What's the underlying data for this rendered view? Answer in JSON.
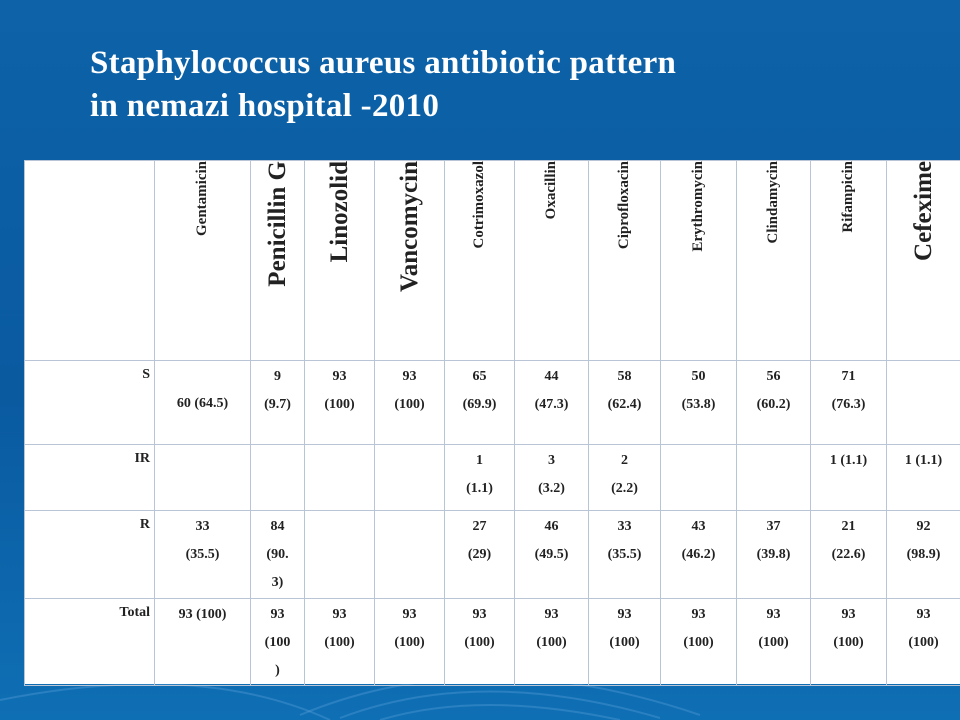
{
  "slide": {
    "title_line1": "Staphylococcus aureus antibiotic pattern",
    "title_line2": "in nemazi  hospital -2010"
  },
  "table": {
    "columns": [
      {
        "label": "Gentamicin",
        "size": "small"
      },
      {
        "label": "Penicillin G",
        "size": "big"
      },
      {
        "label": "Linozolid",
        "size": "big"
      },
      {
        "label": "Vancomycin",
        "size": "big"
      },
      {
        "label": "Cotrimoxazol",
        "size": "small"
      },
      {
        "label": "Oxacillin",
        "size": "small"
      },
      {
        "label": "Ciprofloxacin",
        "size": "small"
      },
      {
        "label": "Erythromycin",
        "size": "small"
      },
      {
        "label": "Clindamycin",
        "size": "small"
      },
      {
        "label": "Rifampicin",
        "size": "small"
      },
      {
        "label": "Cefexime",
        "size": "big"
      }
    ],
    "rows": [
      {
        "label": "S",
        "cells": [
          [
            "60 (64.5)"
          ],
          [
            "9",
            "(9.7)"
          ],
          [
            "93",
            "(100)"
          ],
          [
            "93",
            "(100)"
          ],
          [
            "65",
            "(69.9)"
          ],
          [
            "44",
            "(47.3)"
          ],
          [
            "58",
            "(62.4)"
          ],
          [
            "50",
            "(53.8)"
          ],
          [
            "56",
            "(60.2)"
          ],
          [
            "71",
            "(76.3)"
          ],
          []
        ]
      },
      {
        "label": "IR",
        "cells": [
          [],
          [],
          [],
          [],
          [
            "1",
            "(1.1)"
          ],
          [
            "3",
            "(3.2)"
          ],
          [
            "2",
            "(2.2)"
          ],
          [],
          [],
          [
            "1 (1.1)"
          ],
          [
            "1 (1.1)"
          ]
        ]
      },
      {
        "label": "R",
        "cells": [
          [
            "33",
            "(35.5)"
          ],
          [
            "84",
            "(90.",
            "3)"
          ],
          [],
          [],
          [
            "27",
            "(29)"
          ],
          [
            "46",
            "(49.5)"
          ],
          [
            "33",
            "(35.5)"
          ],
          [
            "43",
            "(46.2)"
          ],
          [
            "37",
            "(39.8)"
          ],
          [
            "21",
            "(22.6)"
          ],
          [
            "92",
            "(98.9)"
          ]
        ]
      },
      {
        "label": "Total",
        "cells": [
          [
            "93 (100)"
          ],
          [
            "93",
            "(100",
            ")"
          ],
          [
            "93",
            "(100)"
          ],
          [
            "93",
            "(100)"
          ],
          [
            "93",
            "(100)"
          ],
          [
            "93",
            "(100)"
          ],
          [
            "93",
            "(100)"
          ],
          [
            "93",
            "(100)"
          ],
          [
            "93",
            "(100)"
          ],
          [
            "93",
            "(100)"
          ],
          [
            "93",
            "(100)"
          ]
        ]
      }
    ]
  },
  "colors": {
    "background": "#0d62a8",
    "title_text": "#ffffff",
    "table_background": "#ffffff",
    "table_border": "#b9c4d6"
  }
}
